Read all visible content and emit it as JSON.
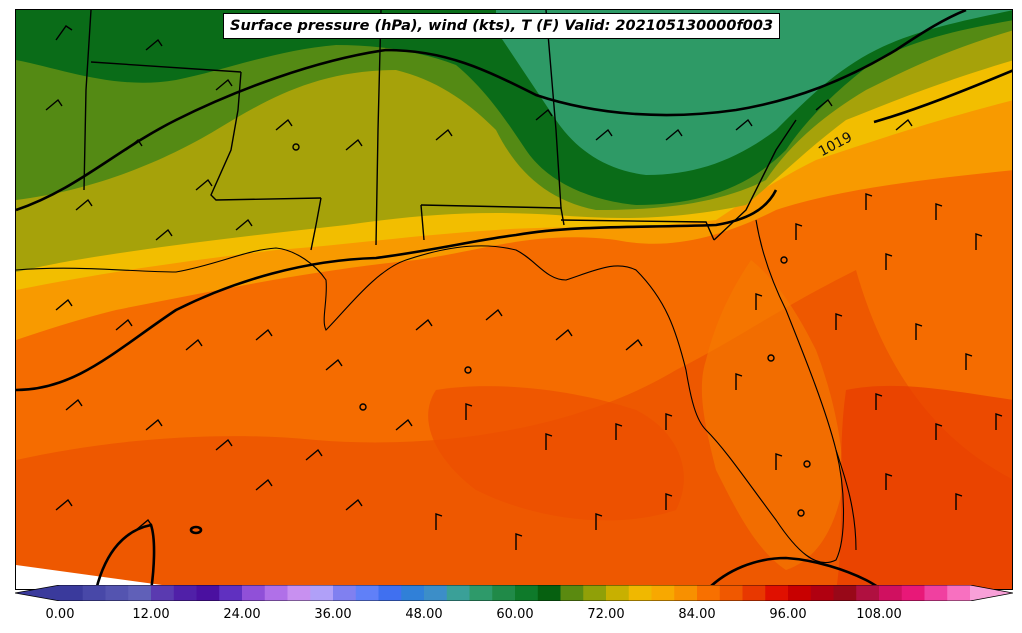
{
  "title": "Surface pressure (hPa), wind (kts), T (F) Valid: 202105130000f003",
  "isobar_label": "1019",
  "colorbar": {
    "min": 0,
    "max": 120,
    "step": 4,
    "ticks": [
      "0.00",
      "12.00",
      "24.00",
      "36.00",
      "48.00",
      "60.00",
      "72.00",
      "84.00",
      "96.00",
      "108.00"
    ],
    "tick_values": [
      0,
      12,
      24,
      36,
      48,
      60,
      72,
      84,
      96,
      108
    ],
    "colors": [
      "#3a3a9c",
      "#4848a8",
      "#5454b0",
      "#6060b8",
      "#5a3ab0",
      "#5020a8",
      "#4a10a0",
      "#6030c0",
      "#9050d8",
      "#b070e8",
      "#c890f0",
      "#b0a0f8",
      "#8080f0",
      "#6080f8",
      "#4070f0",
      "#3080d8",
      "#3c8ec8",
      "#3aa098",
      "#2e9a6a",
      "#208a48",
      "#0e7a2a",
      "#066010",
      "#5a8a10",
      "#90a008",
      "#c8b000",
      "#f0b800",
      "#f8a800",
      "#f89000",
      "#f87000",
      "#f05800",
      "#e83800",
      "#e01000",
      "#c80000",
      "#b00010",
      "#980818",
      "#b01040",
      "#d01060",
      "#e81878",
      "#f040a0",
      "#f870c0"
    ]
  }
}
